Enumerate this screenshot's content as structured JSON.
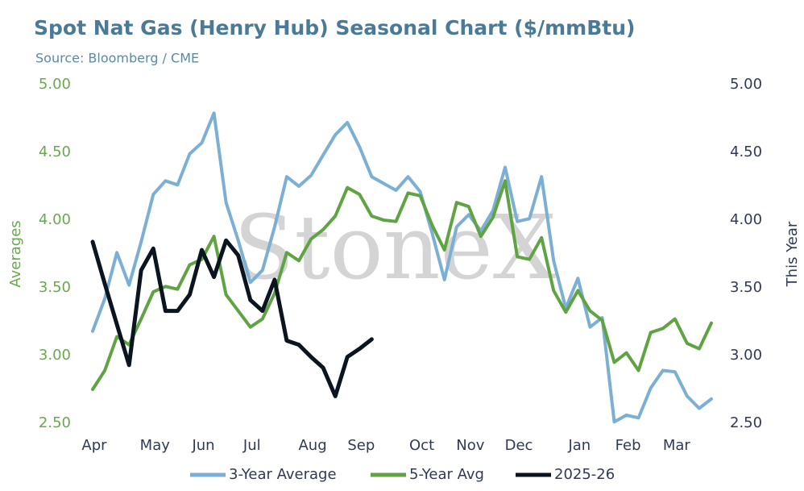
{
  "chart_data": {
    "type": "line",
    "title": "Spot Nat Gas (Henry Hub) Seasonal Chart ($/mmBtu)",
    "subtitle": "Source: Bloomberg / CME",
    "watermark": "StoneX",
    "y_label": "Averages",
    "y2_label": "This Year",
    "categories": [
      "Apr",
      null,
      null,
      null,
      null,
      "May",
      null,
      null,
      null,
      "Jun",
      null,
      null,
      null,
      "Jul",
      null,
      null,
      null,
      null,
      "Aug",
      null,
      null,
      null,
      "Sep",
      null,
      null,
      null,
      null,
      "Oct",
      null,
      null,
      null,
      "Nov",
      null,
      null,
      null,
      "Dec",
      null,
      null,
      null,
      null,
      "Jan",
      null,
      null,
      null,
      "Feb",
      null,
      null,
      null,
      "Mar",
      null,
      null,
      null
    ],
    "series": [
      {
        "name": "3-Year Average",
        "color": "#7bafd4",
        "values": [
          3.18,
          3.42,
          3.76,
          3.52,
          3.84,
          4.19,
          4.29,
          4.26,
          4.49,
          4.57,
          4.79,
          4.13,
          3.85,
          3.54,
          3.63,
          3.95,
          4.32,
          4.25,
          4.33,
          4.48,
          4.63,
          4.72,
          4.54,
          4.32,
          4.27,
          4.22,
          4.32,
          4.21,
          3.9,
          3.56,
          3.95,
          4.04,
          3.92,
          4.07,
          4.39,
          3.99,
          4.01,
          4.32,
          3.7,
          3.35,
          3.57,
          3.21,
          3.28,
          2.51,
          2.56,
          2.54,
          2.76,
          2.89,
          2.88,
          2.7,
          2.61,
          2.68
        ]
      },
      {
        "name": "5-Year Avg",
        "color": "#5fa343",
        "values": [
          2.75,
          2.89,
          3.14,
          3.08,
          3.27,
          3.47,
          3.51,
          3.49,
          3.67,
          3.71,
          3.88,
          3.45,
          3.33,
          3.21,
          3.27,
          3.46,
          3.76,
          3.7,
          3.86,
          3.93,
          4.03,
          4.24,
          4.19,
          4.03,
          4.0,
          3.99,
          4.2,
          4.18,
          3.96,
          3.78,
          4.13,
          4.1,
          3.88,
          4.02,
          4.29,
          3.73,
          3.71,
          3.87,
          3.48,
          3.32,
          3.48,
          3.33,
          3.26,
          2.95,
          3.02,
          2.89,
          3.17,
          3.2,
          3.27,
          3.09,
          3.05,
          3.24
        ]
      },
      {
        "name": "2025-26",
        "color": "#0b1520",
        "axis": "y2",
        "values": [
          3.84,
          3.53,
          3.23,
          2.93,
          3.63,
          3.79,
          3.33,
          3.33,
          3.45,
          3.78,
          3.58,
          3.85,
          3.74,
          3.41,
          3.33,
          3.56,
          3.11,
          3.08,
          2.99,
          2.91,
          2.7,
          2.99,
          3.05,
          3.12,
          null,
          null,
          null,
          null,
          null,
          null,
          null,
          null,
          null,
          null,
          null,
          null,
          null,
          null,
          null,
          null,
          null,
          null,
          null,
          null,
          null,
          null,
          null,
          null,
          null,
          null,
          null,
          null
        ]
      }
    ],
    "ylim": [
      2.5,
      5
    ],
    "yticks": [
      {
        "value": 2.5,
        "label": "2.50"
      },
      {
        "value": 3,
        "label": "3.00"
      },
      {
        "value": 3.5,
        "label": "3.50"
      },
      {
        "value": 4,
        "label": "4.00"
      },
      {
        "value": 4.5,
        "label": "4.50"
      },
      {
        "value": 5,
        "label": "5.00"
      }
    ],
    "y2lim": [
      2.5,
      5
    ],
    "y2ticks": [
      {
        "value": 2.5,
        "label": "2.50"
      },
      {
        "value": 3,
        "label": "3.00"
      },
      {
        "value": 3.5,
        "label": "3.50"
      },
      {
        "value": 4,
        "label": "4.00"
      },
      {
        "value": 4.5,
        "label": "4.50"
      },
      {
        "value": 5,
        "label": "5.00"
      }
    ],
    "grid": false,
    "legend": "bottom"
  }
}
